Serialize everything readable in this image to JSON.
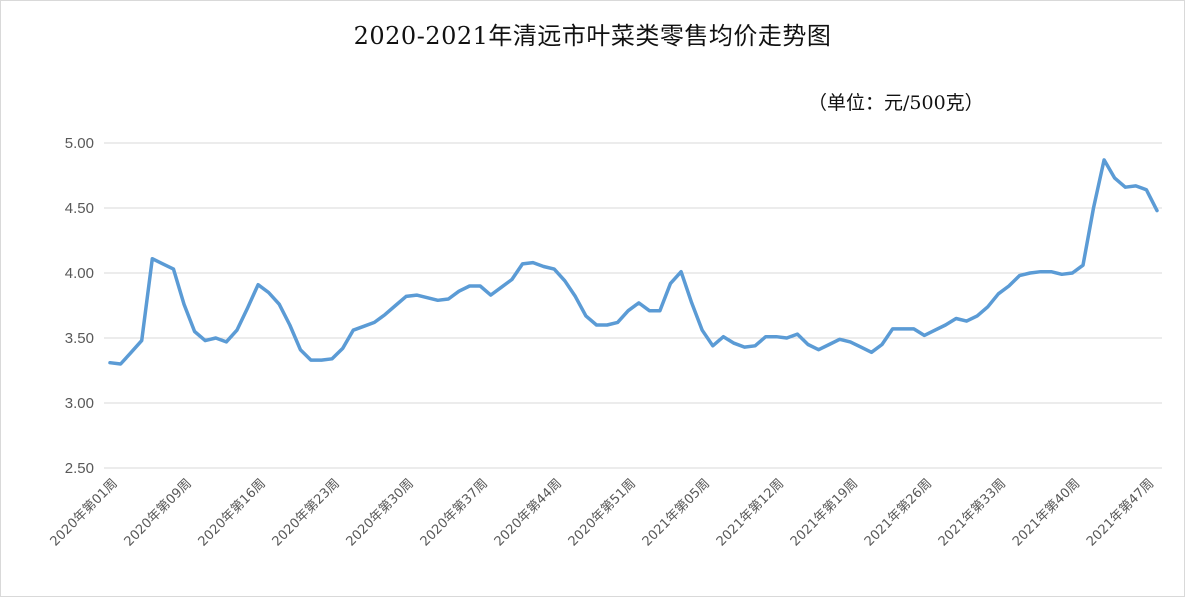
{
  "chart_data": {
    "type": "line",
    "title": "2020-2021年清远市叶菜类零售均价走势图",
    "unit_label": "（单位：元/500克）",
    "ylim": [
      2.5,
      5.0
    ],
    "yticks": [
      "2.50",
      "3.00",
      "3.50",
      "4.00",
      "4.50",
      "5.00"
    ],
    "grid": true,
    "line_color": "#5B9BD5",
    "xtick_labels": [
      "2020年第01周",
      "2020年第09周",
      "2020年第16周",
      "2020年第23周",
      "2020年第30周",
      "2020年第37周",
      "2020年第44周",
      "2020年第51周",
      "2021年第05周",
      "2021年第12周",
      "2021年第19周",
      "2021年第26周",
      "2021年第33周",
      "2021年第40周",
      "2021年第47周"
    ],
    "xtick_indices": [
      0,
      7,
      14,
      21,
      28,
      35,
      42,
      49,
      56,
      63,
      70,
      77,
      84,
      91,
      98
    ],
    "values": [
      3.31,
      3.3,
      3.39,
      3.48,
      4.11,
      4.07,
      4.03,
      3.76,
      3.55,
      3.48,
      3.5,
      3.47,
      3.56,
      3.73,
      3.91,
      3.85,
      3.76,
      3.6,
      3.41,
      3.33,
      3.33,
      3.34,
      3.42,
      3.56,
      3.59,
      3.62,
      3.68,
      3.75,
      3.82,
      3.83,
      3.81,
      3.79,
      3.8,
      3.86,
      3.9,
      3.9,
      3.83,
      3.89,
      3.95,
      4.07,
      4.08,
      4.05,
      4.03,
      3.94,
      3.82,
      3.67,
      3.6,
      3.6,
      3.62,
      3.71,
      3.77,
      3.71,
      3.71,
      3.92,
      4.01,
      3.77,
      3.56,
      3.44,
      3.51,
      3.46,
      3.43,
      3.44,
      3.51,
      3.51,
      3.5,
      3.53,
      3.45,
      3.41,
      3.45,
      3.49,
      3.47,
      3.43,
      3.39,
      3.45,
      3.57,
      3.57,
      3.57,
      3.52,
      3.56,
      3.6,
      3.65,
      3.63,
      3.67,
      3.74,
      3.84,
      3.9,
      3.98,
      4.0,
      4.01,
      4.01,
      3.99,
      4.0,
      4.06,
      4.5,
      4.87,
      4.73,
      4.66,
      4.67,
      4.64,
      4.48
    ]
  }
}
